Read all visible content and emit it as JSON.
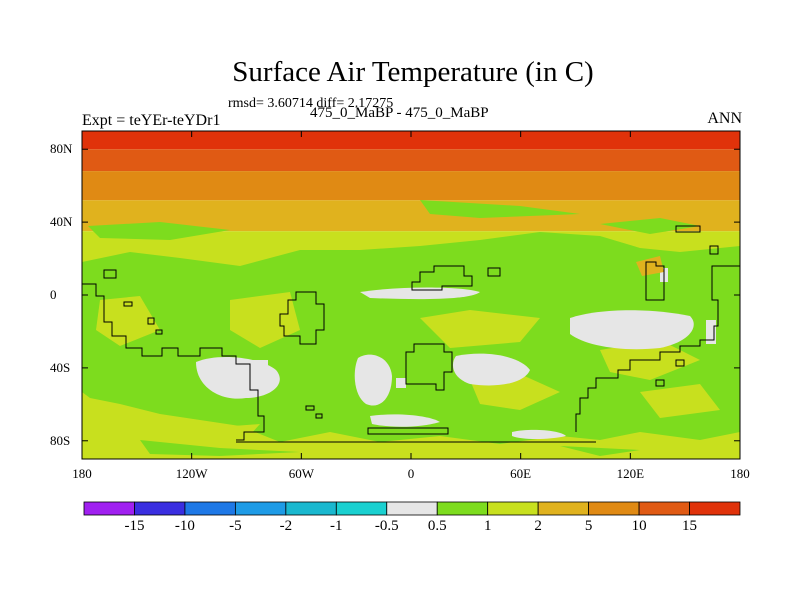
{
  "figure": {
    "title": "Surface Air Temperature (in C)",
    "stats_text": "rmsd= 3.60714 diff= 2.17275",
    "left_label": "Expt = teYEr-teYDr1",
    "subtitle": "475_0_MaBP - 475_0_MaBP",
    "season": "ANN"
  },
  "axes": {
    "y_ticks": [
      {
        "label": "80N",
        "lat": 80
      },
      {
        "label": "40N",
        "lat": 40
      },
      {
        "label": "0",
        "lat": 0
      },
      {
        "label": "40S",
        "lat": -40
      },
      {
        "label": "80S",
        "lat": -80
      }
    ],
    "x_ticks": [
      {
        "label": "180",
        "lon": -180
      },
      {
        "label": "120W",
        "lon": -120
      },
      {
        "label": "60W",
        "lon": -60
      },
      {
        "label": "0",
        "lon": 0
      },
      {
        "label": "60E",
        "lon": 60
      },
      {
        "label": "120E",
        "lon": 120
      },
      {
        "label": "180",
        "lon": 180
      }
    ],
    "lon_range": [
      -180,
      180
    ],
    "lat_range": [
      -90,
      90
    ]
  },
  "colorbar": {
    "colors": [
      "#a020f0",
      "#3a2ee0",
      "#1e78e6",
      "#1e9be6",
      "#1ab8cf",
      "#1ad0d0",
      "#e6e6e6",
      "#7ddc1e",
      "#c8e01e",
      "#e0b21e",
      "#e08a14",
      "#e05a14",
      "#e0320a"
    ],
    "labels": [
      "-15",
      "-10",
      "-5",
      "-2",
      "-1",
      "-0.5",
      "0.5",
      "1",
      "2",
      "5",
      "10",
      "15"
    ]
  },
  "chart_data": {
    "type": "heatmap",
    "title": "Surface Air Temperature (in C)",
    "xlim": [
      -180,
      180
    ],
    "ylim": [
      -90,
      90
    ],
    "lat_bands": [
      {
        "lat_from": 90,
        "lat_to": 80,
        "bin": "10 to 15+",
        "color": "#e0320a"
      },
      {
        "lat_from": 80,
        "lat_to": 68,
        "bin": "10 to 15",
        "color": "#e05a14"
      },
      {
        "lat_from": 68,
        "lat_to": 52,
        "bin": "5 to 10",
        "color": "#e08a14"
      },
      {
        "lat_from": 52,
        "lat_to": 35,
        "bin": "2 to 5",
        "color": "#e0b21e"
      },
      {
        "lat_from": 35,
        "lat_to": -90,
        "bin": "1 to 2",
        "color": "#c8e01e"
      }
    ],
    "regions": [
      {
        "bin": "0.5 to 1",
        "color": "#7ddc1e",
        "shape": "tropical/southern belt"
      },
      {
        "bin": "-0.5 to 0.5",
        "color": "#e6e6e6",
        "shape": "southern ocean patches"
      }
    ]
  }
}
